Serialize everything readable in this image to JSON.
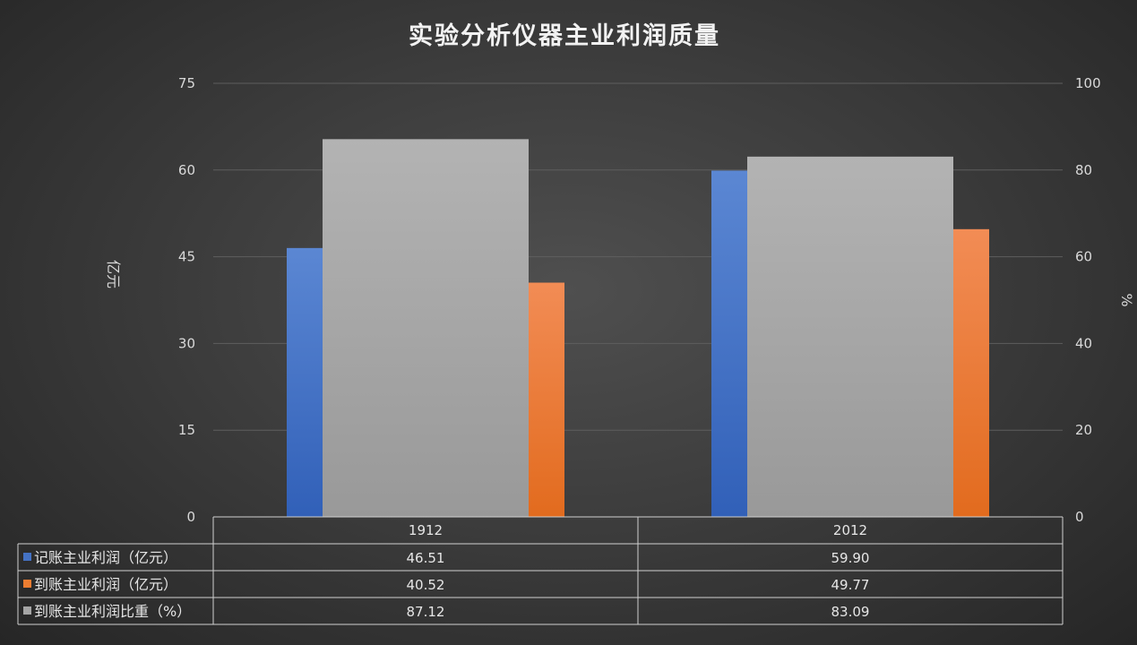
{
  "chart_data": {
    "type": "bar",
    "title": "实验分析仪器主业利润质量",
    "categories": [
      "1912",
      "2012"
    ],
    "ylabel": "亿元",
    "y2label": "%",
    "ylim": [
      0,
      75
    ],
    "y2lim": [
      0,
      100
    ],
    "yticks": [
      "0",
      "15",
      "30",
      "45",
      "60",
      "75"
    ],
    "y2ticks": [
      "0",
      "20",
      "40",
      "60",
      "80",
      "100"
    ],
    "grid": true,
    "legend": "data-table",
    "series": [
      {
        "name": "记账主业利润（亿元）",
        "axis": "left",
        "color": "#4472c4",
        "values": [
          46.51,
          59.9
        ],
        "labels": [
          "46.51",
          "59.90"
        ]
      },
      {
        "name": "到账主业利润（亿元）",
        "axis": "left",
        "color": "#ed7d31",
        "values": [
          40.52,
          49.77
        ],
        "labels": [
          "40.52",
          "49.77"
        ]
      },
      {
        "name": "到账主业利润比重（%）",
        "axis": "right",
        "color": "#a5a5a5",
        "values": [
          87.12,
          83.09
        ],
        "labels": [
          "87.12",
          "83.09"
        ]
      }
    ]
  }
}
